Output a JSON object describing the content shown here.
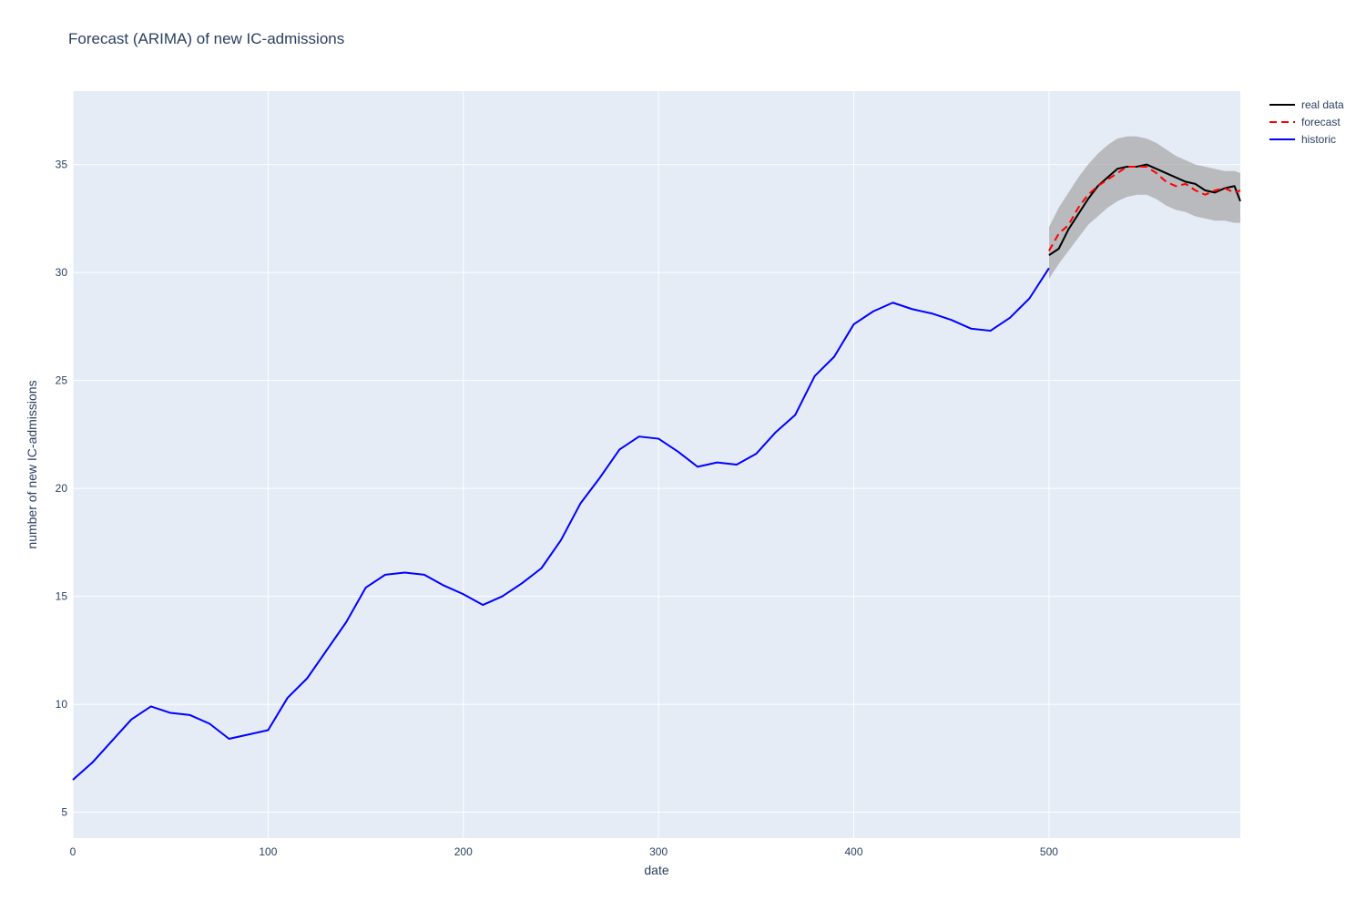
{
  "chart_data": {
    "type": "line",
    "title": "Forecast (ARIMA) of new IC-admissions",
    "xlabel": "date",
    "ylabel": "number of new IC-admissions",
    "xlim": [
      0,
      598
    ],
    "ylim": [
      3.8,
      38.4
    ],
    "xticks": [
      0,
      100,
      200,
      300,
      400,
      500
    ],
    "yticks": [
      5,
      10,
      15,
      20,
      25,
      30,
      35
    ],
    "grid": true,
    "legend_position": "top-right",
    "colors": {
      "plot_bg": "#e5ecf6",
      "grid": "#ffffff",
      "historic": "#0000ff",
      "real": "#000000",
      "forecast": "#ff0000",
      "band": "#a9a9a9"
    },
    "series": [
      {
        "name": "historic",
        "style": "solid",
        "x": [
          0,
          10,
          20,
          30,
          40,
          50,
          60,
          70,
          80,
          90,
          100,
          110,
          120,
          130,
          140,
          150,
          160,
          170,
          180,
          190,
          200,
          210,
          220,
          230,
          240,
          250,
          260,
          270,
          280,
          290,
          300,
          310,
          320,
          330,
          340,
          350,
          360,
          370,
          380,
          390,
          400,
          410,
          420,
          430,
          440,
          450,
          460,
          470,
          480,
          490,
          500
        ],
        "y": [
          6.5,
          7.3,
          8.3,
          9.3,
          9.9,
          9.6,
          9.5,
          9.1,
          8.4,
          8.6,
          8.8,
          10.3,
          11.2,
          12.5,
          13.8,
          15.4,
          16.0,
          16.1,
          16.0,
          15.5,
          15.1,
          14.6,
          15.0,
          15.6,
          16.3,
          17.6,
          19.3,
          20.5,
          21.8,
          22.4,
          22.3,
          21.7,
          21.0,
          21.2,
          21.1,
          21.6,
          22.6,
          23.4,
          25.2,
          26.1,
          27.6,
          28.2,
          28.6,
          28.3,
          28.1,
          27.8,
          27.4,
          27.3,
          27.9,
          28.8,
          30.2
        ]
      },
      {
        "name": "real data",
        "style": "solid",
        "x": [
          500,
          505,
          510,
          515,
          520,
          525,
          530,
          535,
          540,
          545,
          550,
          555,
          560,
          565,
          570,
          575,
          580,
          585,
          590,
          595,
          598
        ],
        "y": [
          30.8,
          31.1,
          32.0,
          32.7,
          33.4,
          34.0,
          34.4,
          34.8,
          34.9,
          34.9,
          35.0,
          34.8,
          34.6,
          34.4,
          34.2,
          34.1,
          33.8,
          33.7,
          33.9,
          34.0,
          33.3
        ]
      },
      {
        "name": "forecast",
        "style": "dashed",
        "x": [
          500,
          505,
          510,
          515,
          520,
          525,
          530,
          535,
          540,
          545,
          550,
          555,
          560,
          565,
          570,
          575,
          580,
          585,
          590,
          595,
          598
        ],
        "y": [
          31.0,
          31.8,
          32.2,
          33.0,
          33.6,
          34.0,
          34.3,
          34.6,
          34.9,
          34.9,
          34.9,
          34.6,
          34.2,
          34.0,
          34.1,
          33.8,
          33.6,
          33.8,
          33.9,
          33.7,
          33.8
        ]
      }
    ],
    "band": {
      "x": [
        500,
        505,
        510,
        515,
        520,
        525,
        530,
        535,
        540,
        545,
        550,
        555,
        560,
        565,
        570,
        575,
        580,
        585,
        590,
        595,
        598
      ],
      "lower": [
        29.7,
        30.4,
        31.0,
        31.6,
        32.2,
        32.6,
        33.0,
        33.3,
        33.5,
        33.6,
        33.6,
        33.4,
        33.1,
        32.9,
        32.8,
        32.6,
        32.5,
        32.4,
        32.4,
        32.3,
        32.3
      ],
      "upper": [
        32.1,
        33.0,
        33.7,
        34.4,
        35.0,
        35.5,
        35.9,
        36.2,
        36.3,
        36.3,
        36.2,
        36.0,
        35.7,
        35.4,
        35.2,
        35.0,
        34.9,
        34.8,
        34.7,
        34.7,
        34.6
      ]
    }
  }
}
